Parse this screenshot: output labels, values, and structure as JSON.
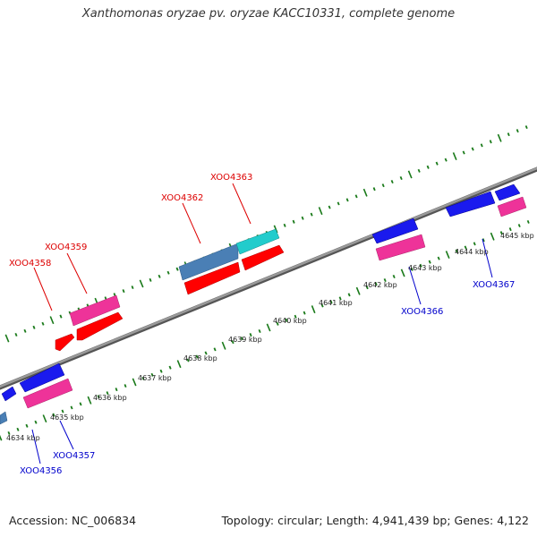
{
  "title": "Xanthomonas oryzae pv. oryzae KACC10331, complete genome",
  "footer": {
    "accession": "Accession: NC_006834",
    "stats": "Topology: circular; Length: 4,941,439 bp; Genes: 4,122"
  },
  "colors": {
    "backbone": "#8c8c8c",
    "tick": "#1a7a1a",
    "label_forward": "#dd0000",
    "label_reverse": "#0000cc",
    "gene_red": "#ff0000",
    "gene_pink": "#ee3399",
    "gene_blue": "#1a1aee",
    "gene_steel": "#4a7fb5",
    "gene_cyan": "#22cccc"
  },
  "axis": {
    "unit": "kbp",
    "ticks": [
      {
        "kbp": 4634,
        "label": "4634 kbp"
      },
      {
        "kbp": 4635,
        "label": "4635 kbp"
      },
      {
        "kbp": 4636,
        "label": "4636 kbp"
      },
      {
        "kbp": 4637,
        "label": "4637 kbp"
      },
      {
        "kbp": 4638,
        "label": "4638 kbp"
      },
      {
        "kbp": 4639,
        "label": "4639 kbp"
      },
      {
        "kbp": 4640,
        "label": "4640 kbp"
      },
      {
        "kbp": 4641,
        "label": "4641 kbp"
      },
      {
        "kbp": 4642,
        "label": "4642 kbp"
      },
      {
        "kbp": 4643,
        "label": "4643 kbp"
      },
      {
        "kbp": 4644,
        "label": "4644 kbp"
      },
      {
        "kbp": 4645,
        "label": "4645 kbp"
      }
    ]
  },
  "gene_labels": {
    "forward": [
      "XOO4358",
      "XOO4359",
      "XOO4362",
      "XOO4363"
    ],
    "reverse": [
      "XOO4356",
      "XOO4357",
      "XOO4366",
      "XOO4367"
    ]
  }
}
